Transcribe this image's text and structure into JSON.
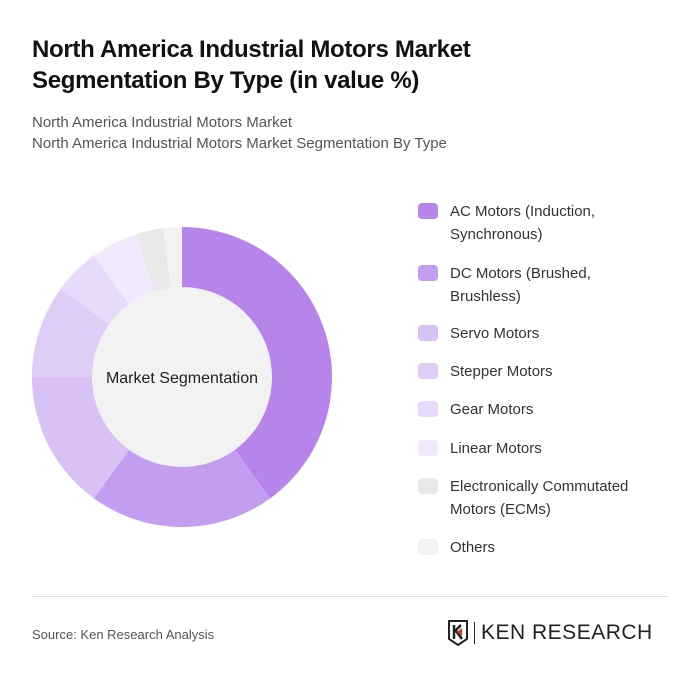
{
  "title": "North America Industrial Motors Market Segmentation By Type (in value %)",
  "subtitle1": "North America Industrial Motors Market",
  "subtitle2": "North America Industrial Motors Market Segmentation By Type",
  "source": "Source: Ken Research Analysis",
  "logo_text": "KEN RESEARCH",
  "chart_data": {
    "type": "pie",
    "variant": "donut",
    "center_label": "Market Segmentation",
    "legend_position": "right",
    "categories": [
      "AC Motors (Induction, Synchronous)",
      "DC Motors (Brushed, Brushless)",
      "Servo Motors",
      "Stepper Motors",
      "Gear Motors",
      "Linear Motors",
      "Electronically Commutated Motors (ECMs)",
      "Others"
    ],
    "values": [
      40,
      20,
      15,
      10,
      5,
      5,
      3,
      2
    ],
    "colors": [
      "#b784ec",
      "#c39ef0",
      "#d8c1f5",
      "#e0cdf7",
      "#e8dafa",
      "#f2eafc",
      "#e8e8e8",
      "#f2f2f2"
    ]
  }
}
